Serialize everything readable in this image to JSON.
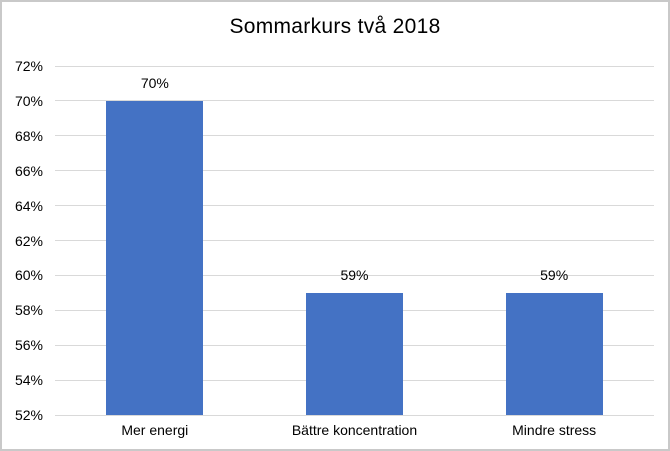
{
  "chart_data": {
    "type": "bar",
    "title": "Sommarkurs två 2018",
    "categories": [
      "Mer energi",
      "Bättre koncentration",
      "Mindre stress"
    ],
    "values": [
      70,
      59,
      59
    ],
    "data_labels": [
      "70%",
      "59%",
      "59%"
    ],
    "xlabel": "",
    "ylabel": "",
    "ylim": [
      52,
      72
    ],
    "ytick_step": 2,
    "ytick_labels": [
      "52%",
      "54%",
      "56%",
      "58%",
      "60%",
      "62%",
      "64%",
      "66%",
      "68%",
      "70%",
      "72%"
    ],
    "grid": true,
    "legend": false,
    "colors": {
      "bar": "#4472C4",
      "gridline": "#D9D9D9",
      "border": "#C9C9C9",
      "text": "#000000"
    }
  }
}
